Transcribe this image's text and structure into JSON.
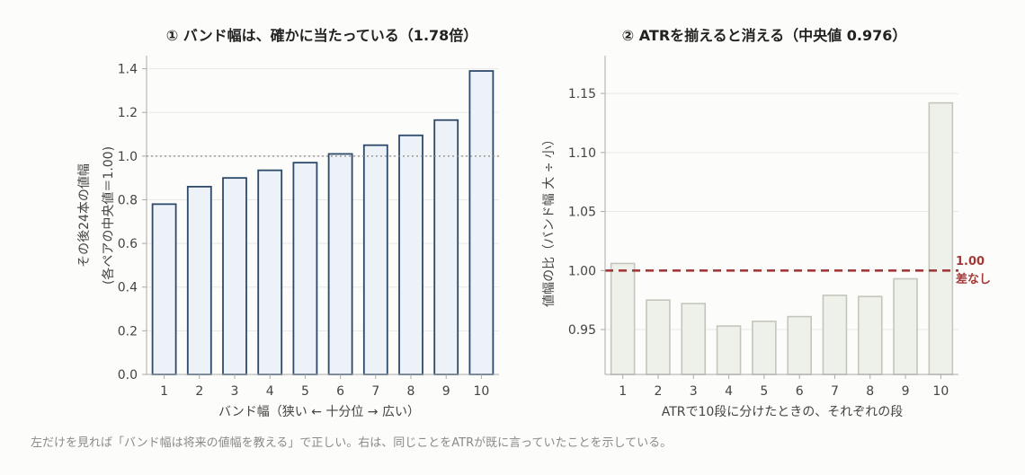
{
  "footer": "左だけを見れば「バンド幅は将来の値幅を教える」で正しい。右は、同じことをATRが既に言っていたことを示している。",
  "colors": {
    "left_fill": "#edf1f8",
    "left_stroke": "#2d4a6b",
    "right_fill": "#eef0ea",
    "right_stroke": "#c4c6bd",
    "ref_line": "#a33a3a",
    "dotted": "#888888"
  },
  "chart_data": [
    {
      "type": "bar",
      "title": "① バンド幅は、確かに当たっている（1.78倍）",
      "xlabel": "バンド幅（狭い ← 十分位 → 広い）",
      "ylabel_line1": "その後24本の値幅",
      "ylabel_line2": "(各ペアの中央値＝1.00)",
      "categories": [
        "1",
        "2",
        "3",
        "4",
        "5",
        "6",
        "7",
        "8",
        "9",
        "10"
      ],
      "values": [
        0.78,
        0.86,
        0.9,
        0.935,
        0.97,
        1.01,
        1.05,
        1.095,
        1.165,
        1.39
      ],
      "ylim": [
        0,
        1.46
      ],
      "yticks": [
        "0.0",
        "0.2",
        "0.4",
        "0.6",
        "0.8",
        "1.0",
        "1.2",
        "1.4"
      ],
      "reference_line": 1.0,
      "grid": "horizontal"
    },
    {
      "type": "bar",
      "title": "② ATRを揃えると消える（中央値 0.976）",
      "xlabel": "ATRで10段に分けたときの、それぞれの段",
      "ylabel": "値幅の比（バンド幅 大 ÷ 小）",
      "categories": [
        "1",
        "2",
        "3",
        "4",
        "5",
        "6",
        "7",
        "8",
        "9",
        "10"
      ],
      "values": [
        1.006,
        0.975,
        0.972,
        0.953,
        0.957,
        0.961,
        0.979,
        0.978,
        0.993,
        1.142
      ],
      "ylim": [
        0.912,
        1.182
      ],
      "yticks": [
        "0.95",
        "1.00",
        "1.05",
        "1.10",
        "1.15"
      ],
      "reference_line": 1.0,
      "reference_label_1": "1.00",
      "reference_label_2": "差なし",
      "grid": "horizontal"
    }
  ]
}
